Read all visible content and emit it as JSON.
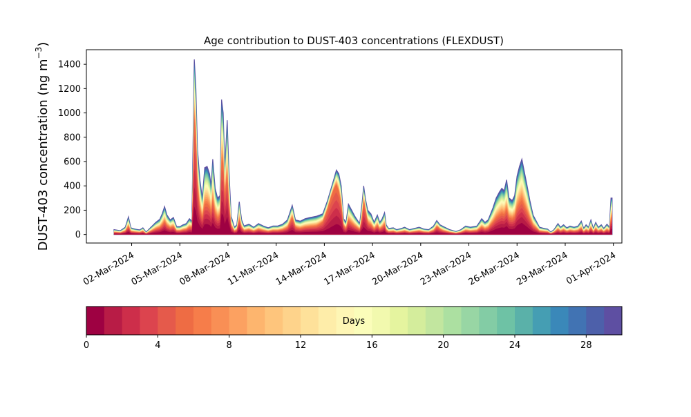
{
  "chart_data": {
    "type": "area",
    "title": "Age contribution to DUST-403 concentrations (FLEXDUST)",
    "ylabel": "DUST-403 concentration (ng m",
    "ylabel_sup": "−3",
    "ylabel_close": ")",
    "xlabel": "",
    "ylim": [
      -70,
      1520
    ],
    "y_ticks": [
      0,
      200,
      400,
      600,
      800,
      1000,
      1200,
      1400
    ],
    "x_range_days": [
      -1.82,
      31.53
    ],
    "x_ticks": [
      {
        "day": 1,
        "label": "02-Mar-2024"
      },
      {
        "day": 4,
        "label": "05-Mar-2024"
      },
      {
        "day": 7,
        "label": "08-Mar-2024"
      },
      {
        "day": 10,
        "label": "11-Mar-2024"
      },
      {
        "day": 13,
        "label": "14-Mar-2024"
      },
      {
        "day": 16,
        "label": "17-Mar-2024"
      },
      {
        "day": 19,
        "label": "20-Mar-2024"
      },
      {
        "day": 22,
        "label": "23-Mar-2024"
      },
      {
        "day": 25,
        "label": "26-Mar-2024"
      },
      {
        "day": 28,
        "label": "29-Mar-2024"
      },
      {
        "day": 31,
        "label": "01-Apr-2024"
      }
    ],
    "total": [
      [
        -0.1,
        40
      ],
      [
        0.3,
        32
      ],
      [
        0.6,
        60
      ],
      [
        0.8,
        145
      ],
      [
        0.95,
        55
      ],
      [
        1.2,
        45
      ],
      [
        1.5,
        38
      ],
      [
        1.7,
        55
      ],
      [
        1.9,
        20
      ],
      [
        2.2,
        60
      ],
      [
        2.5,
        100
      ],
      [
        2.75,
        125
      ],
      [
        2.9,
        170
      ],
      [
        3.05,
        230
      ],
      [
        3.2,
        160
      ],
      [
        3.4,
        120
      ],
      [
        3.6,
        140
      ],
      [
        3.8,
        65
      ],
      [
        4.0,
        65
      ],
      [
        4.2,
        80
      ],
      [
        4.4,
        90
      ],
      [
        4.6,
        130
      ],
      [
        4.75,
        110
      ],
      [
        4.9,
        1440
      ],
      [
        5.0,
        1200
      ],
      [
        5.1,
        700
      ],
      [
        5.25,
        450
      ],
      [
        5.4,
        300
      ],
      [
        5.55,
        550
      ],
      [
        5.7,
        560
      ],
      [
        5.85,
        500
      ],
      [
        5.95,
        400
      ],
      [
        6.05,
        620
      ],
      [
        6.2,
        380
      ],
      [
        6.35,
        300
      ],
      [
        6.5,
        320
      ],
      [
        6.6,
        1110
      ],
      [
        6.7,
        1000
      ],
      [
        6.8,
        550
      ],
      [
        6.95,
        940
      ],
      [
        7.05,
        550
      ],
      [
        7.2,
        150
      ],
      [
        7.4,
        60
      ],
      [
        7.55,
        80
      ],
      [
        7.7,
        270
      ],
      [
        7.85,
        120
      ],
      [
        8.0,
        70
      ],
      [
        8.3,
        85
      ],
      [
        8.6,
        60
      ],
      [
        8.9,
        90
      ],
      [
        9.2,
        70
      ],
      [
        9.5,
        55
      ],
      [
        9.8,
        70
      ],
      [
        10.1,
        70
      ],
      [
        10.4,
        85
      ],
      [
        10.7,
        120
      ],
      [
        10.9,
        200
      ],
      [
        11.0,
        240
      ],
      [
        11.2,
        120
      ],
      [
        11.5,
        110
      ],
      [
        11.8,
        130
      ],
      [
        12.1,
        140
      ],
      [
        12.5,
        150
      ],
      [
        12.9,
        170
      ],
      [
        13.2,
        280
      ],
      [
        13.4,
        370
      ],
      [
        13.6,
        460
      ],
      [
        13.75,
        530
      ],
      [
        13.9,
        500
      ],
      [
        14.05,
        400
      ],
      [
        14.2,
        130
      ],
      [
        14.35,
        100
      ],
      [
        14.5,
        250
      ],
      [
        14.7,
        200
      ],
      [
        14.9,
        150
      ],
      [
        15.05,
        120
      ],
      [
        15.2,
        90
      ],
      [
        15.35,
        260
      ],
      [
        15.45,
        400
      ],
      [
        15.55,
        300
      ],
      [
        15.7,
        200
      ],
      [
        15.9,
        170
      ],
      [
        16.1,
        100
      ],
      [
        16.3,
        160
      ],
      [
        16.45,
        100
      ],
      [
        16.6,
        130
      ],
      [
        16.75,
        180
      ],
      [
        16.85,
        80
      ],
      [
        17.0,
        50
      ],
      [
        17.3,
        55
      ],
      [
        17.5,
        40
      ],
      [
        17.8,
        50
      ],
      [
        18.0,
        60
      ],
      [
        18.3,
        40
      ],
      [
        18.6,
        50
      ],
      [
        18.9,
        60
      ],
      [
        19.2,
        45
      ],
      [
        19.5,
        40
      ],
      [
        19.8,
        70
      ],
      [
        20.0,
        115
      ],
      [
        20.2,
        80
      ],
      [
        20.5,
        60
      ],
      [
        20.8,
        40
      ],
      [
        21.2,
        25
      ],
      [
        21.5,
        40
      ],
      [
        21.8,
        70
      ],
      [
        22.1,
        60
      ],
      [
        22.5,
        70
      ],
      [
        22.8,
        130
      ],
      [
        23.0,
        100
      ],
      [
        23.2,
        120
      ],
      [
        23.5,
        220
      ],
      [
        23.7,
        300
      ],
      [
        23.9,
        350
      ],
      [
        24.05,
        380
      ],
      [
        24.2,
        360
      ],
      [
        24.35,
        450
      ],
      [
        24.5,
        300
      ],
      [
        24.7,
        280
      ],
      [
        24.85,
        320
      ],
      [
        25.0,
        480
      ],
      [
        25.15,
        560
      ],
      [
        25.3,
        620
      ],
      [
        25.45,
        520
      ],
      [
        25.6,
        420
      ],
      [
        25.8,
        280
      ],
      [
        26.0,
        160
      ],
      [
        26.2,
        110
      ],
      [
        26.4,
        60
      ],
      [
        26.7,
        50
      ],
      [
        26.9,
        45
      ],
      [
        27.1,
        20
      ],
      [
        27.3,
        40
      ],
      [
        27.55,
        90
      ],
      [
        27.7,
        60
      ],
      [
        27.9,
        80
      ],
      [
        28.1,
        55
      ],
      [
        28.3,
        70
      ],
      [
        28.55,
        60
      ],
      [
        28.8,
        70
      ],
      [
        29.0,
        110
      ],
      [
        29.15,
        50
      ],
      [
        29.3,
        80
      ],
      [
        29.45,
        60
      ],
      [
        29.6,
        120
      ],
      [
        29.75,
        50
      ],
      [
        29.9,
        100
      ],
      [
        30.05,
        60
      ],
      [
        30.25,
        80
      ],
      [
        30.4,
        50
      ],
      [
        30.6,
        85
      ],
      [
        30.75,
        60
      ],
      [
        30.85,
        300
      ],
      [
        30.92,
        300
      ]
    ],
    "young_peaks": [
      {
        "center": 4.95,
        "width": 0.25,
        "amount": 0.45
      },
      {
        "center": 6.75,
        "width": 0.3,
        "amount": 0.3
      },
      {
        "center": 13.5,
        "width": 0.7,
        "amount": 0.7
      },
      {
        "center": 15.5,
        "width": 0.2,
        "amount": 0.5
      },
      {
        "center": 11.0,
        "width": 0.3,
        "amount": 0.3
      },
      {
        "center": 20.1,
        "width": 0.25,
        "amount": 0.3
      }
    ],
    "colorbar": {
      "label": "Days",
      "range": [
        0,
        30
      ],
      "ticks": [
        0,
        4,
        8,
        12,
        16,
        20,
        24,
        28
      ],
      "colors": [
        "#9e0142",
        "#b81c46",
        "#cd2e4a",
        "#dc444e",
        "#e55a4b",
        "#ee6c44",
        "#f67d4a",
        "#f98f55",
        "#fca161",
        "#fdb56e",
        "#fec57c",
        "#fed38b",
        "#fee19a",
        "#feeda9",
        "#fef6b5",
        "#fbfdba",
        "#f2f9ae",
        "#e5f49f",
        "#d4ed9c",
        "#c2e69f",
        "#ace0a1",
        "#98d6a4",
        "#83cca5",
        "#6ec2a5",
        "#5ab1a9",
        "#459eb3",
        "#3a88b9",
        "#4173b3",
        "#4d60aa",
        "#5e4fa2"
      ]
    }
  }
}
